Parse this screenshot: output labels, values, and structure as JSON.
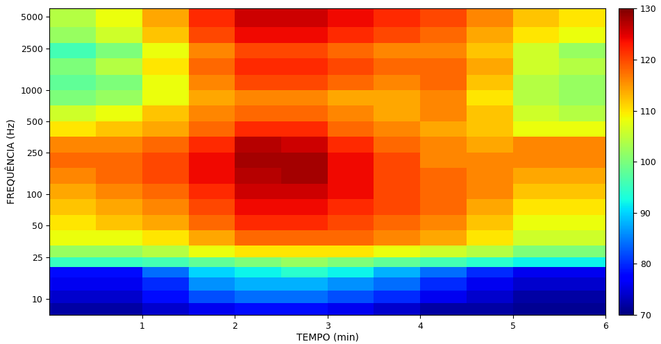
{
  "chart_data": {
    "type": "heatmap",
    "x_label": "TEMPO (min)",
    "y_label": "FREQUÊNCIA (Hz)",
    "log": "y",
    "color": "jet",
    "x_edges": [
      0,
      0.5,
      1,
      1.5,
      2,
      2.5,
      3,
      3.5,
      4,
      4.5,
      5,
      5.5,
      6
    ],
    "y_edges": [
      7,
      9,
      12,
      16,
      20,
      25,
      32,
      45,
      63,
      90,
      125,
      180,
      250,
      355,
      500,
      710,
      1000,
      1400,
      2000,
      2800,
      4000,
      6000
    ],
    "cells": [
      [
        72,
        72,
        74,
        76,
        78,
        78,
        76,
        74,
        72,
        72,
        71,
        71
      ],
      [
        74,
        74,
        78,
        82,
        84,
        84,
        82,
        80,
        76,
        74,
        72,
        72
      ],
      [
        76,
        76,
        80,
        86,
        88,
        88,
        86,
        84,
        80,
        76,
        74,
        74
      ],
      [
        78,
        78,
        84,
        90,
        92,
        94,
        92,
        88,
        84,
        80,
        76,
        76
      ],
      [
        95,
        95,
        96,
        98,
        100,
        102,
        100,
        98,
        96,
        94,
        92,
        92
      ],
      [
        102,
        102,
        104,
        108,
        110,
        110,
        110,
        108,
        106,
        104,
        100,
        100
      ],
      [
        108,
        108,
        110,
        114,
        118,
        118,
        118,
        116,
        114,
        110,
        106,
        106
      ],
      [
        110,
        112,
        114,
        118,
        122,
        122,
        120,
        118,
        116,
        112,
        108,
        108
      ],
      [
        112,
        114,
        116,
        120,
        124,
        124,
        122,
        120,
        118,
        114,
        110,
        110
      ],
      [
        114,
        116,
        118,
        122,
        126,
        126,
        124,
        120,
        118,
        116,
        112,
        112
      ],
      [
        116,
        118,
        120,
        124,
        127,
        128,
        124,
        120,
        118,
        116,
        114,
        114
      ],
      [
        118,
        118,
        120,
        124,
        128,
        128,
        124,
        120,
        116,
        116,
        116,
        116
      ],
      [
        116,
        116,
        118,
        122,
        127,
        126,
        122,
        118,
        116,
        114,
        116,
        116
      ],
      [
        110,
        112,
        114,
        118,
        122,
        122,
        118,
        116,
        114,
        112,
        108,
        108
      ],
      [
        106,
        108,
        112,
        116,
        118,
        118,
        116,
        114,
        116,
        112,
        106,
        104
      ],
      [
        100,
        102,
        108,
        114,
        116,
        116,
        114,
        114,
        116,
        110,
        104,
        102
      ],
      [
        98,
        100,
        108,
        116,
        120,
        120,
        118,
        116,
        118,
        112,
        104,
        102
      ],
      [
        100,
        104,
        110,
        118,
        122,
        122,
        120,
        118,
        118,
        114,
        106,
        104
      ],
      [
        96,
        100,
        108,
        116,
        120,
        120,
        118,
        116,
        116,
        112,
        106,
        102
      ],
      [
        102,
        106,
        112,
        120,
        124,
        124,
        122,
        120,
        118,
        114,
        110,
        108
      ],
      [
        104,
        108,
        114,
        122,
        126,
        126,
        124,
        122,
        120,
        116,
        112,
        110
      ]
    ],
    "xlim": [
      0,
      6
    ],
    "xticks": [
      1,
      2,
      3,
      4,
      5,
      6
    ],
    "ylim": [
      7,
      6000
    ],
    "yticks": [
      10,
      25,
      50,
      100,
      250,
      500,
      1000,
      2500,
      5000
    ],
    "colorbar_range": [
      70,
      130
    ],
    "colorbar_ticks": [
      70,
      80,
      90,
      100,
      110,
      120,
      130
    ]
  }
}
